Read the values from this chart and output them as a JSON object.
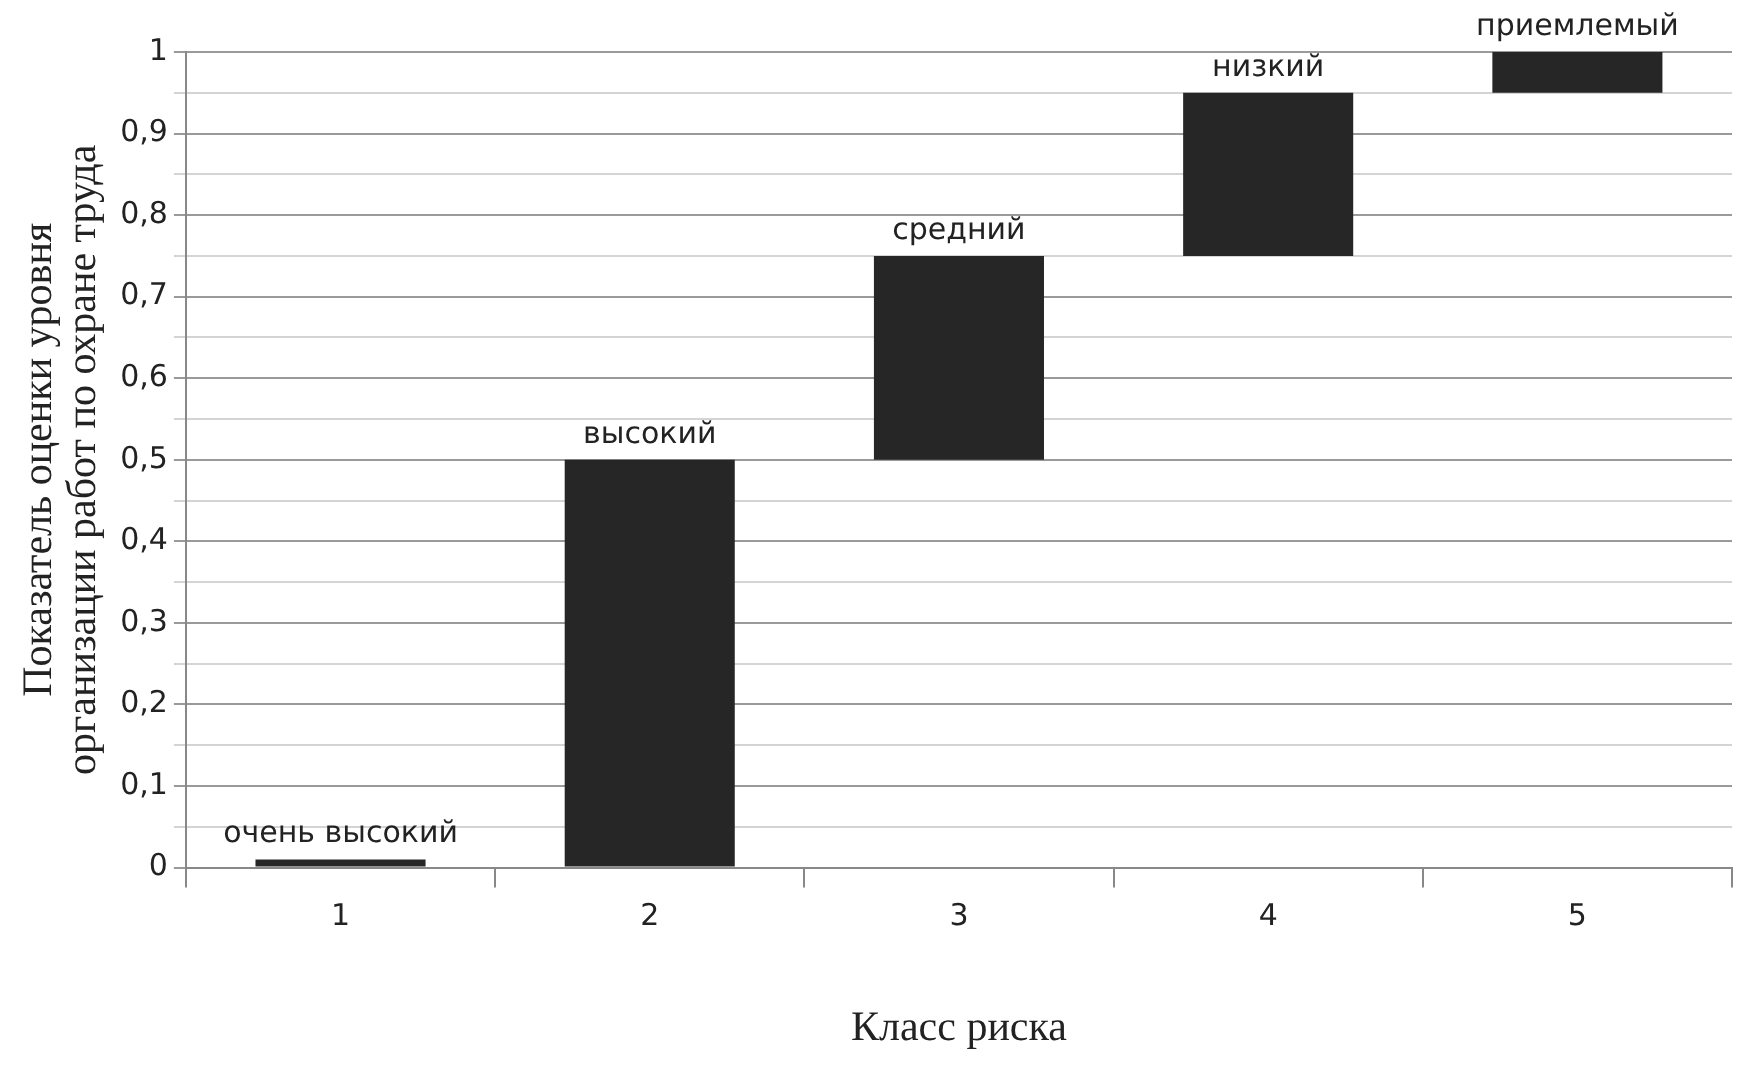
{
  "chart_data": {
    "type": "bar",
    "xlabel": "Класс риска",
    "ylabel": "Показатель оценки уровня организации работ по охране труда",
    "categories": [
      "1",
      "2",
      "3",
      "4",
      "5"
    ],
    "values": [
      0.01,
      0.5,
      0.25,
      0.2,
      0.05
    ],
    "base": [
      0,
      0,
      0.5,
      0.75,
      0.95
    ],
    "color": "#262626",
    "ylim": [
      0,
      1
    ],
    "yticks": [
      0,
      {
        "value": 0.05,
        "label": null
      },
      {
        "value": 0.1,
        "label": "0,1"
      },
      {
        "value": 0.15,
        "label": null
      },
      {
        "value": 0.2,
        "label": "0,2"
      },
      {
        "value": 0.25,
        "label": null
      },
      {
        "value": 0.3,
        "label": "0,3"
      },
      {
        "value": 0.35,
        "label": null
      },
      {
        "value": 0.4,
        "label": "0,4"
      },
      {
        "value": 0.45,
        "label": null
      },
      {
        "value": 0.5,
        "label": "0,5"
      },
      {
        "value": 0.55,
        "label": null
      },
      {
        "value": 0.6,
        "label": "0,6"
      },
      {
        "value": 0.65,
        "label": null
      },
      {
        "value": 0.7,
        "label": "0,7"
      },
      {
        "value": 0.75,
        "label": null
      },
      {
        "value": 0.8,
        "label": "0,8"
      },
      {
        "value": 0.85,
        "label": null
      },
      {
        "value": 0.9,
        "label": "0,9"
      },
      {
        "value": 0.95,
        "label": null
      },
      1
    ],
    "grid": "y",
    "annotations": [
      {
        "text": "очень высокий",
        "x": "1",
        "y": 0.01
      },
      {
        "text": "высокий",
        "x": "2",
        "y": 0.5
      },
      {
        "text": "средний",
        "x": "3",
        "y": 0.75
      },
      {
        "text": "низкий",
        "x": "4",
        "y": 0.95
      },
      {
        "text": "приемлемый",
        "x": "5",
        "y": 1
      }
    ]
  }
}
